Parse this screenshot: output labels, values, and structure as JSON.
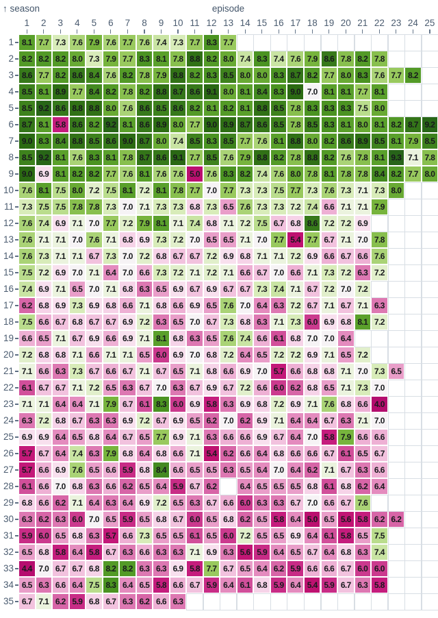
{
  "header": {
    "season_arrow": "↑",
    "season_label": "season",
    "episode_label": "episode"
  },
  "colors": {
    "background": "#ffffff",
    "grid_line": "#d8dee4",
    "axis_text": "#4b5c70",
    "cell_text": "#17191c",
    "colormap": [
      [
        4.0,
        "#b30d6e"
      ],
      [
        5.5,
        "#bf1170"
      ],
      [
        5.8,
        "#c51d7d"
      ],
      [
        6.0,
        "#cb3a8e"
      ],
      [
        6.2,
        "#d765a7"
      ],
      [
        6.4,
        "#e48bbe"
      ],
      [
        6.6,
        "#eeb0d4"
      ],
      [
        6.8,
        "#f6d3e8"
      ],
      [
        6.9,
        "#f8e0ee"
      ],
      [
        7.0,
        "#f6f3f5"
      ],
      [
        7.1,
        "#ebf3de"
      ],
      [
        7.3,
        "#d8ecb9"
      ],
      [
        7.5,
        "#badd8d"
      ],
      [
        7.7,
        "#99c95e"
      ],
      [
        7.9,
        "#77b43d"
      ],
      [
        8.1,
        "#5aa02b"
      ],
      [
        8.3,
        "#4b9322"
      ],
      [
        8.6,
        "#37791b"
      ],
      [
        9.0,
        "#2b6a12"
      ],
      [
        9.3,
        "#276419"
      ]
    ]
  },
  "chart_data": {
    "type": "heatmap",
    "title": "",
    "xlabel": "episode",
    "ylabel": "season",
    "x": [
      1,
      2,
      3,
      4,
      5,
      6,
      7,
      8,
      9,
      10,
      11,
      12,
      13,
      14,
      15,
      16,
      17,
      18,
      19,
      20,
      21,
      22,
      23,
      24,
      25
    ],
    "y": [
      1,
      2,
      3,
      4,
      5,
      6,
      7,
      8,
      9,
      10,
      11,
      12,
      13,
      14,
      15,
      16,
      17,
      18,
      19,
      20,
      21,
      22,
      23,
      24,
      25,
      26,
      27,
      28,
      29,
      30,
      31,
      32,
      33,
      34,
      35
    ],
    "value_format": "one_decimal",
    "rows": [
      {
        "season": 1,
        "ratings": [
          8.1,
          7.7,
          7.3,
          7.6,
          7.9,
          7.6,
          7.7,
          7.6,
          7.4,
          7.3,
          7.7,
          8.3,
          7.7
        ]
      },
      {
        "season": 2,
        "ratings": [
          8.2,
          8.2,
          8.2,
          8.0,
          7.3,
          7.9,
          7.7,
          8.3,
          8.1,
          7.8,
          8.8,
          8.2,
          8.0,
          7.4,
          8.3,
          7.4,
          7.6,
          7.9,
          8.6,
          7.8,
          8.2,
          7.8
        ]
      },
      {
        "season": 3,
        "ratings": [
          8.6,
          7.7,
          8.2,
          8.6,
          8.4,
          7.6,
          8.2,
          7.8,
          7.9,
          8.8,
          8.2,
          8.3,
          8.5,
          8.0,
          8.0,
          8.3,
          8.7,
          8.2,
          7.7,
          8.0,
          8.3,
          7.6,
          7.7,
          8.2
        ]
      },
      {
        "season": 4,
        "ratings": [
          8.5,
          8.1,
          8.9,
          7.7,
          8.4,
          8.2,
          7.8,
          8.2,
          8.8,
          8.7,
          8.6,
          9.1,
          8.0,
          8.1,
          8.4,
          8.3,
          9.0,
          7.0,
          8.1,
          8.1,
          7.7,
          8.1
        ]
      },
      {
        "season": 5,
        "ratings": [
          8.5,
          9.2,
          8.6,
          8.8,
          8.8,
          8.0,
          7.6,
          8.6,
          8.5,
          8.6,
          8.2,
          8.1,
          8.2,
          8.1,
          8.8,
          8.5,
          7.8,
          8.3,
          8.3,
          8.3,
          7.5,
          8.0
        ]
      },
      {
        "season": 6,
        "ratings": [
          8.7,
          8.1,
          5.8,
          8.6,
          8.2,
          9.2,
          8.1,
          8.6,
          8.9,
          8.0,
          7.7,
          9.0,
          8.9,
          8.7,
          8.6,
          8.5,
          7.8,
          8.5,
          8.3,
          8.1,
          8.0,
          8.1,
          8.2,
          8.7,
          9.2
        ]
      },
      {
        "season": 7,
        "ratings": [
          9.0,
          8.3,
          8.4,
          8.8,
          8.5,
          8.6,
          9.0,
          8.7,
          8.0,
          7.4,
          8.5,
          8.3,
          8.5,
          7.7,
          7.6,
          8.1,
          8.8,
          8.0,
          8.2,
          8.6,
          8.9,
          8.5,
          8.1,
          7.9,
          8.5
        ]
      },
      {
        "season": 8,
        "ratings": [
          8.5,
          9.2,
          8.1,
          7.6,
          8.3,
          8.1,
          7.8,
          8.7,
          8.6,
          9.1,
          7.7,
          8.5,
          7.6,
          7.9,
          8.8,
          8.2,
          7.8,
          8.8,
          8.2,
          7.6,
          7.8,
          8.1,
          9.3,
          7.1,
          7.8
        ]
      },
      {
        "season": 9,
        "ratings": [
          9.0,
          6.9,
          8.1,
          8.2,
          8.2,
          7.7,
          7.6,
          8.1,
          7.6,
          7.6,
          5.0,
          7.6,
          8.3,
          8.2,
          7.4,
          7.6,
          8.0,
          7.8,
          8.1,
          7.8,
          7.8,
          8.4,
          8.2,
          7.7,
          8.0
        ]
      },
      {
        "season": 10,
        "ratings": [
          7.6,
          8.1,
          7.5,
          8.0,
          7.2,
          7.5,
          8.1,
          7.2,
          8.1,
          7.8,
          7.7,
          7.0,
          7.7,
          7.3,
          7.3,
          7.5,
          7.7,
          7.3,
          7.6,
          7.3,
          7.1,
          7.3,
          8.0
        ]
      },
      {
        "season": 11,
        "ratings": [
          7.3,
          7.5,
          7.5,
          7.8,
          7.8,
          7.3,
          7.0,
          7.1,
          7.3,
          7.3,
          6.8,
          7.3,
          6.5,
          7.6,
          7.3,
          7.3,
          7.2,
          7.4,
          6.6,
          7.1,
          7.1,
          7.9
        ]
      },
      {
        "season": 12,
        "ratings": [
          7.6,
          7.4,
          6.9,
          7.1,
          7.0,
          7.7,
          7.2,
          7.9,
          8.1,
          7.1,
          7.4,
          6.8,
          7.1,
          7.2,
          7.5,
          6.7,
          6.8,
          8.6,
          7.2,
          7.2,
          6.9
        ]
      },
      {
        "season": 13,
        "ratings": [
          7.6,
          7.1,
          7.1,
          7.0,
          7.6,
          7.1,
          6.8,
          6.9,
          7.3,
          7.2,
          7.0,
          6.5,
          6.5,
          7.1,
          7.0,
          7.7,
          5.4,
          7.7,
          6.7,
          7.1,
          7.0,
          7.8
        ]
      },
      {
        "season": 14,
        "ratings": [
          7.6,
          7.3,
          7.1,
          7.1,
          6.7,
          7.3,
          7.0,
          7.2,
          6.8,
          6.7,
          6.7,
          7.2,
          6.9,
          6.8,
          7.1,
          7.1,
          7.2,
          6.9,
          6.6,
          6.7,
          6.6,
          7.6
        ]
      },
      {
        "season": 15,
        "ratings": [
          7.5,
          7.2,
          6.9,
          7.0,
          7.1,
          6.4,
          7.0,
          6.6,
          7.3,
          7.2,
          7.1,
          7.2,
          7.1,
          6.6,
          6.7,
          7.0,
          6.6,
          7.1,
          7.3,
          7.2,
          6.3,
          7.2
        ]
      },
      {
        "season": 16,
        "ratings": [
          7.4,
          6.9,
          7.1,
          6.5,
          7.0,
          7.1,
          6.8,
          6.3,
          6.5,
          6.9,
          6.7,
          6.9,
          6.7,
          6.7,
          7.3,
          7.4,
          7.1,
          6.7,
          7.2,
          7.0,
          7.2
        ]
      },
      {
        "season": 17,
        "ratings": [
          6.2,
          6.8,
          6.9,
          7.3,
          6.9,
          6.8,
          6.6,
          7.1,
          6.8,
          6.6,
          6.9,
          6.5,
          7.6,
          7.0,
          6.4,
          6.3,
          7.2,
          6.7,
          7.1,
          6.7,
          7.1,
          6.3
        ]
      },
      {
        "season": 18,
        "ratings": [
          7.5,
          6.6,
          6.7,
          6.8,
          6.7,
          6.7,
          6.9,
          7.2,
          6.3,
          6.5,
          7.0,
          6.7,
          7.3,
          6.8,
          6.3,
          7.1,
          7.3,
          6.0,
          6.9,
          6.8,
          8.1,
          7.2
        ]
      },
      {
        "season": 19,
        "ratings": [
          6.6,
          6.5,
          7.1,
          6.7,
          6.9,
          6.6,
          6.9,
          7.1,
          8.1,
          6.8,
          6.3,
          6.5,
          7.6,
          7.4,
          6.6,
          6.1,
          6.8,
          7.0,
          7.0,
          6.4
        ]
      },
      {
        "season": 20,
        "ratings": [
          7.2,
          6.8,
          6.8,
          7.1,
          6.6,
          7.1,
          7.1,
          6.5,
          6.0,
          6.9,
          7.0,
          6.8,
          7.2,
          6.4,
          6.5,
          7.2,
          7.2,
          6.9,
          7.1,
          6.5,
          7.2
        ]
      },
      {
        "season": 21,
        "ratings": [
          7.1,
          6.6,
          6.3,
          7.3,
          6.7,
          6.6,
          6.7,
          7.1,
          6.7,
          6.5,
          7.1,
          6.8,
          6.6,
          6.9,
          7.0,
          5.7,
          6.6,
          6.8,
          6.8,
          7.1,
          7.0,
          7.3,
          6.5
        ]
      },
      {
        "season": 22,
        "ratings": [
          6.1,
          6.7,
          6.7,
          7.1,
          7.2,
          6.5,
          6.3,
          6.7,
          7.0,
          6.3,
          6.7,
          6.9,
          6.7,
          7.2,
          6.6,
          6.0,
          6.2,
          6.8,
          6.5,
          7.1,
          7.3,
          7.0
        ]
      },
      {
        "season": 23,
        "ratings": [
          7.1,
          7.1,
          6.4,
          6.4,
          7.1,
          7.9,
          6.7,
          6.1,
          8.3,
          6.0,
          6.9,
          5.8,
          6.3,
          6.9,
          6.8,
          7.2,
          6.9,
          7.1,
          7.6,
          6.8,
          6.6,
          4.0
        ]
      },
      {
        "season": 24,
        "ratings": [
          6.3,
          7.2,
          6.8,
          6.7,
          6.3,
          6.3,
          6.9,
          7.2,
          6.7,
          6.9,
          6.5,
          6.2,
          7.0,
          6.2,
          6.9,
          7.1,
          6.4,
          6.4,
          6.7,
          6.3,
          7.1,
          7.0
        ]
      },
      {
        "season": 25,
        "ratings": [
          6.9,
          6.9,
          6.4,
          6.5,
          6.8,
          6.4,
          6.7,
          6.5,
          7.7,
          6.9,
          7.1,
          6.3,
          6.6,
          6.6,
          6.9,
          6.7,
          6.4,
          7.0,
          5.8,
          7.9,
          6.6,
          6.6
        ]
      },
      {
        "season": 26,
        "ratings": [
          5.7,
          6.7,
          6.4,
          7.4,
          6.3,
          7.9,
          6.8,
          6.4,
          6.8,
          6.6,
          7.1,
          5.4,
          6.2,
          6.6,
          6.4,
          6.8,
          6.6,
          6.6,
          6.7,
          6.1,
          6.5,
          6.7
        ]
      },
      {
        "season": 27,
        "ratings": [
          5.7,
          6.6,
          6.9,
          7.6,
          6.5,
          6.6,
          5.9,
          6.8,
          8.4,
          6.6,
          6.5,
          6.5,
          6.3,
          6.5,
          6.4,
          7.0,
          6.4,
          6.2,
          7.1,
          6.7,
          6.3,
          6.6
        ]
      },
      {
        "season": 28,
        "ratings": [
          6.1,
          6.6,
          7.0,
          6.8,
          6.3,
          6.6,
          6.2,
          6.5,
          6.4,
          5.9,
          6.7,
          6.2,
          null,
          6.4,
          6.5,
          6.5,
          6.5,
          6.8,
          6.1,
          6.8,
          6.2,
          6.4
        ]
      },
      {
        "season": 29,
        "ratings": [
          6.8,
          6.6,
          6.2,
          7.1,
          6.4,
          6.3,
          6.4,
          6.9,
          7.2,
          6.5,
          6.3,
          6.7,
          6.6,
          6.0,
          6.3,
          6.3,
          6.7,
          7.0,
          6.6,
          6.7,
          7.6
        ]
      },
      {
        "season": 30,
        "ratings": [
          6.3,
          6.2,
          6.3,
          6.0,
          7.0,
          6.5,
          5.9,
          6.5,
          6.8,
          6.7,
          6.0,
          6.5,
          6.8,
          6.2,
          6.5,
          5.8,
          6.4,
          5.0,
          6.5,
          5.6,
          5.8,
          6.2,
          6.2
        ]
      },
      {
        "season": 31,
        "ratings": [
          5.9,
          6.0,
          6.5,
          6.8,
          6.3,
          5.7,
          6.6,
          7.3,
          6.5,
          6.5,
          6.1,
          6.5,
          6.0,
          7.2,
          6.5,
          6.5,
          6.9,
          6.4,
          6.1,
          5.8,
          6.5,
          7.5
        ]
      },
      {
        "season": 32,
        "ratings": [
          6.5,
          6.8,
          5.8,
          6.4,
          5.8,
          6.7,
          6.3,
          6.6,
          6.3,
          6.3,
          7.1,
          6.9,
          6.3,
          5.6,
          5.9,
          6.4,
          6.5,
          6.7,
          6.4,
          6.8,
          6.3,
          7.4
        ]
      },
      {
        "season": 33,
        "ratings": [
          4.4,
          7.0,
          6.7,
          6.7,
          6.8,
          8.2,
          8.2,
          6.3,
          6.3,
          6.9,
          5.8,
          7.7,
          6.7,
          6.5,
          6.4,
          6.2,
          5.9,
          6.6,
          6.6,
          6.7,
          6.0,
          6.0
        ]
      },
      {
        "season": 34,
        "ratings": [
          6.5,
          6.3,
          6.6,
          6.4,
          7.5,
          8.3,
          6.4,
          6.5,
          5.8,
          6.6,
          6.7,
          5.9,
          6.4,
          6.1,
          6.8,
          5.9,
          6.4,
          5.4,
          5.9,
          6.7,
          6.3,
          5.8
        ]
      },
      {
        "season": 35,
        "ratings": [
          6.7,
          7.1,
          6.2,
          5.9,
          6.8,
          6.7,
          6.3,
          6.2,
          6.6,
          6.3
        ]
      }
    ]
  }
}
